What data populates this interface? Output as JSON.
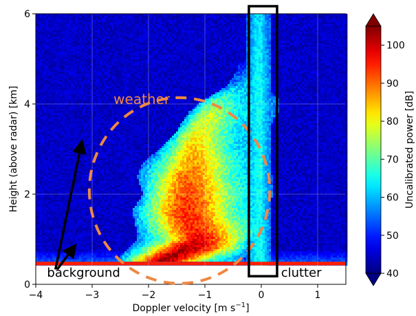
{
  "chart_data": {
    "type": "heatmap",
    "title": "",
    "xlabel": "Doppler velocity [m s",
    "xlabel_sup": "−1",
    "xlabel_close": "]",
    "ylabel": "Height (above radar) [km]",
    "xlim": [
      -4,
      1.5
    ],
    "ylim": [
      0,
      6
    ],
    "x_ticks": [
      -4,
      -3,
      -2,
      -1,
      0,
      1
    ],
    "x_tick_labels": [
      "−4",
      "−3",
      "−2",
      "−1",
      "0",
      "1"
    ],
    "y_ticks": [
      0,
      2,
      4,
      6
    ],
    "y_tick_labels": [
      "0",
      "2",
      "4",
      "6"
    ],
    "grid": true,
    "colorbar": {
      "label": "Uncalibrated power [dB]",
      "range": [
        40,
        105
      ],
      "ticks": [
        40,
        50,
        60,
        70,
        80,
        90,
        100
      ],
      "tick_labels": [
        "40",
        "50",
        "60",
        "70",
        "80",
        "90",
        "100"
      ],
      "colormap": "jet"
    },
    "data_floor_height_km": 0.42,
    "ground_band": {
      "height_km": [
        0.42,
        0.5
      ],
      "power_db": 95
    },
    "profiles": [
      {
        "h": 0.5,
        "center": -1.8,
        "w1": 0.1,
        "w2": 0.35,
        "left": -2.6,
        "right": -0.3,
        "pmax": 102
      },
      {
        "h": 0.8,
        "center": -1.3,
        "w1": 0.2,
        "w2": 0.45,
        "left": -2.35,
        "right": -0.25,
        "pmax": 100
      },
      {
        "h": 1.0,
        "center": -1.1,
        "w1": 0.18,
        "w2": 0.4,
        "left": -2.2,
        "right": -0.2,
        "pmax": 96
      },
      {
        "h": 1.2,
        "center": -1.2,
        "w1": 0.22,
        "w2": 0.45,
        "left": -2.2,
        "right": 0.1,
        "pmax": 92
      },
      {
        "h": 1.6,
        "center": -1.35,
        "w1": 0.2,
        "w2": 0.42,
        "left": -2.3,
        "right": 0.15,
        "pmax": 92
      },
      {
        "h": 2.0,
        "center": -1.3,
        "w1": 0.18,
        "w2": 0.42,
        "left": -2.1,
        "right": 0.2,
        "pmax": 90
      },
      {
        "h": 2.4,
        "center": -1.3,
        "w1": 0.15,
        "w2": 0.38,
        "left": -2.2,
        "right": 0.2,
        "pmax": 87
      },
      {
        "h": 2.7,
        "center": -1.2,
        "w1": 0.12,
        "w2": 0.35,
        "left": -2.1,
        "right": 0.1,
        "pmax": 83
      },
      {
        "h": 3.0,
        "center": -1.2,
        "w1": 0.1,
        "w2": 0.3,
        "left": -1.8,
        "right": 0.1,
        "pmax": 80
      },
      {
        "h": 3.4,
        "center": -1.1,
        "w1": 0.08,
        "w2": 0.28,
        "left": -1.5,
        "right": 0.1,
        "pmax": 76
      },
      {
        "h": 3.8,
        "center": -0.9,
        "w1": 0.06,
        "w2": 0.25,
        "left": -1.3,
        "right": 0.3,
        "pmax": 72
      },
      {
        "h": 4.1,
        "center": -0.8,
        "w1": 0.05,
        "w2": 0.2,
        "left": -1.0,
        "right": 0.3,
        "pmax": 65
      },
      {
        "h": 4.4,
        "center": -0.5,
        "w1": 0.05,
        "w2": 0.15,
        "left": -0.6,
        "right": 0.1,
        "pmax": 55
      },
      {
        "h": 4.8,
        "center": -0.3,
        "w1": 0.05,
        "w2": 0.1,
        "left": -0.4,
        "right": 0.0,
        "pmax": 48
      }
    ],
    "clutter": {
      "x": -0.05,
      "width": 0.22,
      "power_db": 62
    },
    "annotations": [
      {
        "text": "weather",
        "color": "#ee8844",
        "x": -2.62,
        "y": 4.0
      },
      {
        "text": "background",
        "color": "#000000",
        "x": -3.8,
        "y": 0.17
      },
      {
        "text": "clutter",
        "color": "#000000",
        "x": 0.35,
        "y": 0.17
      }
    ],
    "weather_ellipse": {
      "cx": -1.45,
      "cy": 2.08,
      "rx": 1.6,
      "ry": 2.06,
      "color": "#ee8844"
    },
    "clutter_box": {
      "x0": -0.22,
      "x1": 0.28,
      "y0": 0.18,
      "y1": 6.0
    },
    "arrows": [
      {
        "from": [
          -3.65,
          0.33
        ],
        "to": [
          -3.2,
          3.06
        ]
      },
      {
        "from": [
          -3.62,
          0.33
        ],
        "to": [
          -3.35,
          0.78
        ]
      }
    ]
  }
}
